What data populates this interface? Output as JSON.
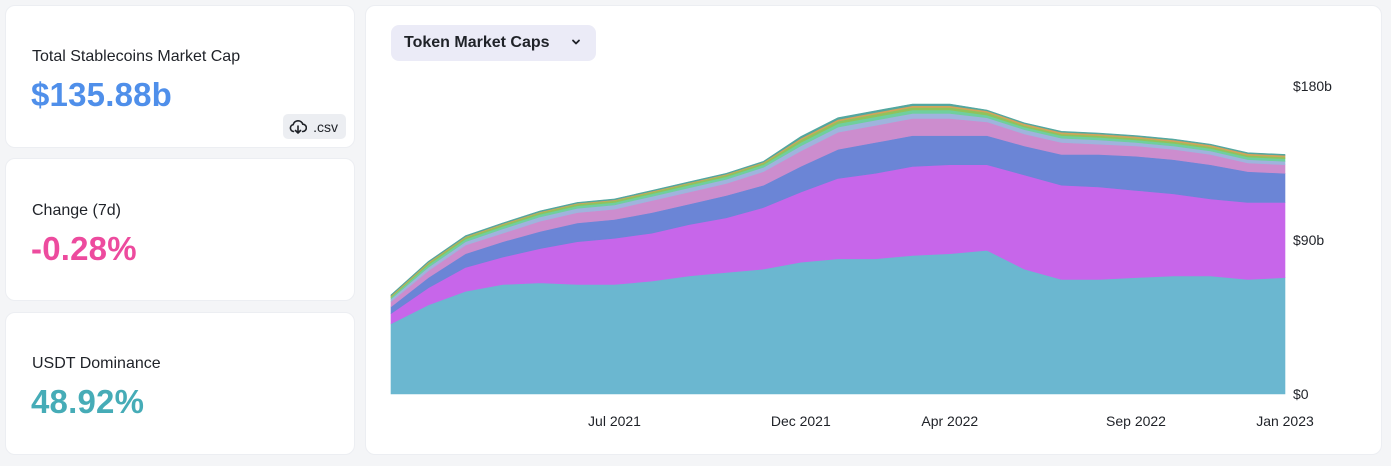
{
  "stats": {
    "total": {
      "label": "Total Stablecoins Market Cap",
      "value": "$135.88b",
      "color": "#4f8fea"
    },
    "change": {
      "label": "Change (7d)",
      "value": "-0.28%",
      "color": "#ed4b9e"
    },
    "dominance": {
      "label": "USDT Dominance",
      "value": "48.92%",
      "color": "#46acb7"
    }
  },
  "csv_button": {
    "label": ".csv",
    "icon": "cloud-download-icon"
  },
  "dropdown": {
    "label": "Token Market Caps",
    "icon": "chevron-down-icon"
  },
  "chart_data": {
    "type": "area",
    "stacked": true,
    "title": "",
    "xlabel": "",
    "ylabel": "",
    "x": [
      "Jan 2021",
      "Feb 2021",
      "Mar 2021",
      "Apr 2021",
      "May 2021",
      "Jun 2021",
      "Jul 2021",
      "Aug 2021",
      "Sep 2021",
      "Oct 2021",
      "Nov 2021",
      "Dec 2021",
      "Jan 2022",
      "Feb 2022",
      "Mar 2022",
      "Apr 2022",
      "May 2022",
      "Jun 2022",
      "Jul 2022",
      "Aug 2022",
      "Sep 2022",
      "Oct 2022",
      "Nov 2022",
      "Dec 2022",
      "Jan 2023"
    ],
    "x_ticks": [
      "Jul 2021",
      "Dec 2021",
      "Apr 2022",
      "Sep 2022",
      "Jan 2023"
    ],
    "y_ticks": [
      "$0",
      "$90b",
      "$180b"
    ],
    "ylim": [
      0,
      180
    ],
    "series": [
      {
        "color": "#6bb7d0",
        "values": [
          41,
          52,
          60,
          64,
          65,
          64,
          64,
          66,
          69,
          71,
          73,
          77,
          79,
          79,
          81,
          82,
          84,
          73,
          67,
          67,
          68,
          69,
          69,
          67,
          68
        ]
      },
      {
        "color": "#c766ea",
        "values": [
          6,
          10,
          14,
          16,
          20,
          25,
          27,
          28,
          30,
          32,
          36,
          41,
          47,
          50,
          52,
          52,
          50,
          55,
          55,
          54,
          51,
          48,
          45,
          45,
          44
        ]
      },
      {
        "color": "#6b85d6",
        "values": [
          4,
          6,
          8,
          9,
          10,
          11,
          11,
          12,
          12,
          13,
          13,
          15,
          17,
          18,
          18,
          17,
          17,
          17,
          18,
          19,
          20,
          20,
          20,
          18,
          17
        ]
      },
      {
        "color": "#cc8dce",
        "values": [
          3,
          4,
          5,
          5,
          6,
          6,
          6,
          7,
          7,
          7,
          8,
          9,
          10,
          10,
          10,
          10,
          8,
          7,
          7,
          6,
          6,
          6,
          6,
          5,
          5
        ]
      },
      {
        "color": "#9fb4dd",
        "values": [
          1.5,
          2,
          2,
          2.5,
          2.5,
          2.5,
          2.5,
          2.5,
          2.5,
          2.5,
          2.5,
          3,
          3,
          3,
          3,
          3,
          2.5,
          2.5,
          2.5,
          2.5,
          2,
          2,
          2,
          2,
          2
        ]
      },
      {
        "color": "#6fcf9e",
        "values": [
          1,
          1.5,
          1.5,
          1.5,
          1.5,
          1.5,
          1.5,
          1.5,
          1.5,
          1.5,
          1.5,
          2,
          2,
          2,
          2,
          2,
          1.5,
          1.5,
          1.5,
          1.5,
          1.5,
          1.5,
          1.5,
          1.5,
          1.5
        ]
      },
      {
        "color": "#8fc35c",
        "values": [
          0.5,
          1,
          1,
          1,
          1,
          1,
          1,
          1,
          1,
          1,
          1,
          1.5,
          1.5,
          1.5,
          1.5,
          1.5,
          1.5,
          1,
          1,
          1,
          1,
          1,
          1,
          1,
          1
        ]
      },
      {
        "color": "#d2a45b",
        "values": [
          0.5,
          0.5,
          0.5,
          0.5,
          0.5,
          0.5,
          0.5,
          0.5,
          0.5,
          0.5,
          0.5,
          1,
          1,
          1,
          1,
          1,
          1,
          1,
          1,
          1,
          1,
          1,
          1,
          1,
          1
        ]
      },
      {
        "color": "#52a79f",
        "values": [
          0.5,
          0.5,
          0.5,
          0.5,
          0.5,
          0.5,
          0.5,
          0.5,
          0.5,
          0.5,
          0.5,
          1,
          1,
          1,
          1,
          1,
          0.5,
          0.5,
          0.5,
          0.5,
          0.5,
          0.5,
          0.5,
          0.5,
          0.5
        ]
      }
    ],
    "grid": false,
    "legend": "none"
  }
}
